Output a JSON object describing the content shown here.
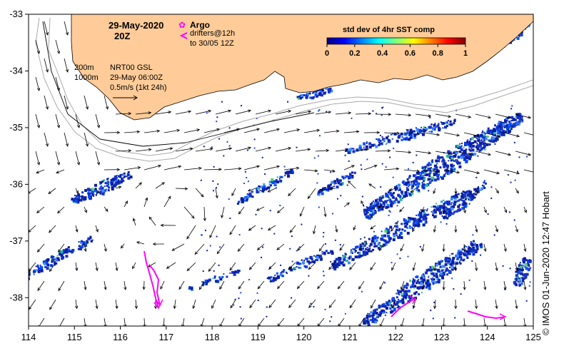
{
  "title": {
    "date": "29-May-2020",
    "time": "20Z"
  },
  "legend": {
    "argo_label": "Argo",
    "drifters_line1": "drifters@12h",
    "drifters_line2": "to 30/05 12Z",
    "argo_color": "#ff00ff",
    "drifter_color": "#ff00ff"
  },
  "info": {
    "isobath1": "200m",
    "isobath2": "1000m",
    "source": "NRT00 GSL",
    "valid": "29-May 06:00Z",
    "scale": "0.5m/s (1kt 24h)"
  },
  "colorbar": {
    "title": "std dev of 4hr SST comp",
    "ticks": [
      "0",
      "0.2",
      "0.4",
      "0.6",
      "0.8",
      "1"
    ],
    "colors": [
      "#00007f",
      "#0000ff",
      "#007fff",
      "#00ffff",
      "#7fff7f",
      "#ffff00",
      "#ff7f00",
      "#ff0000",
      "#7f0000"
    ]
  },
  "axes": {
    "x_ticks": [
      "114",
      "115",
      "116",
      "117",
      "118",
      "119",
      "120",
      "121",
      "122",
      "123",
      "124",
      "125"
    ],
    "y_ticks": [
      "-33",
      "-34",
      "-35",
      "-36",
      "-37",
      "-38"
    ],
    "lon_range": [
      114,
      125
    ],
    "lat_range": [
      -38.5,
      -33
    ]
  },
  "colors": {
    "land": "#ffcc99",
    "sea": "#ffffff",
    "isobath": "#aaaaaa",
    "sst_low": "#1432c8"
  },
  "credit": "© IMOS 01-Jun-2020 12:47 Hobart"
}
